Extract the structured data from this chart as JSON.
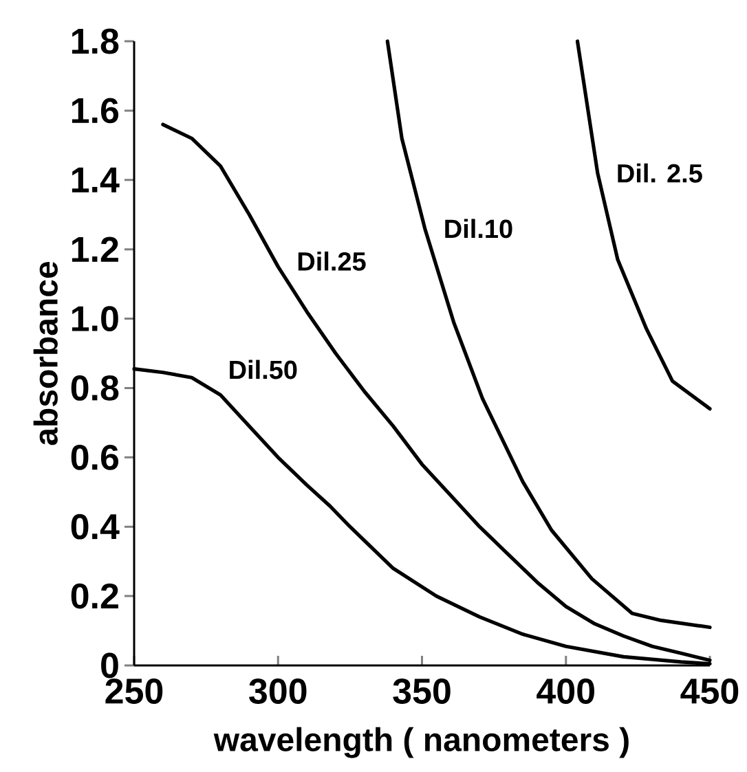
{
  "chart_data": {
    "type": "line",
    "xlabel": "wavelength ( nanometers )",
    "ylabel": "absorbance",
    "xlim": [
      250,
      450
    ],
    "ylim": [
      0,
      1.8
    ],
    "xticks": [
      250,
      300,
      350,
      400,
      450
    ],
    "yticks": [
      {
        "value": 0,
        "label": "0"
      },
      0.2,
      0.4,
      0.6,
      0.8,
      {
        "value": 1,
        "label": "1.0"
      },
      1.2,
      1.4,
      1.6,
      1.8
    ],
    "grid": false,
    "marker": "none",
    "line_style": "solid",
    "series": [
      {
        "name": "Dil.50",
        "color": "#000000",
        "x": [
          250,
          260,
          270,
          280,
          290,
          300,
          310,
          318,
          325,
          340,
          355,
          370,
          385,
          400,
          420,
          440,
          450
        ],
        "values": [
          0.855,
          0.845,
          0.83,
          0.78,
          0.69,
          0.6,
          0.52,
          0.46,
          0.4,
          0.28,
          0.2,
          0.14,
          0.09,
          0.055,
          0.025,
          0.01,
          0.005
        ]
      },
      {
        "name": "Dil.25",
        "color": "#000000",
        "x": [
          260,
          270,
          280,
          290,
          300,
          310,
          320,
          330,
          340,
          350,
          360,
          370,
          380,
          390,
          400,
          410,
          420,
          430,
          440,
          450
        ],
        "values": [
          1.56,
          1.52,
          1.44,
          1.3,
          1.15,
          1.02,
          0.9,
          0.79,
          0.69,
          0.58,
          0.49,
          0.4,
          0.32,
          0.24,
          0.17,
          0.12,
          0.085,
          0.055,
          0.035,
          0.015
        ]
      },
      {
        "name": "Dil.10",
        "color": "#000000",
        "x": [
          338,
          343,
          351,
          361,
          371,
          385,
          395,
          409,
          423,
          433,
          450
        ],
        "values": [
          1.8,
          1.52,
          1.26,
          0.99,
          0.77,
          0.53,
          0.39,
          0.25,
          0.15,
          0.13,
          0.11
        ]
      },
      {
        "name": "Dil. 2.5",
        "color": "#000000",
        "x": [
          404,
          411,
          418,
          428,
          437,
          450
        ],
        "values": [
          1.8,
          1.42,
          1.17,
          0.97,
          0.82,
          0.74
        ]
      }
    ]
  }
}
